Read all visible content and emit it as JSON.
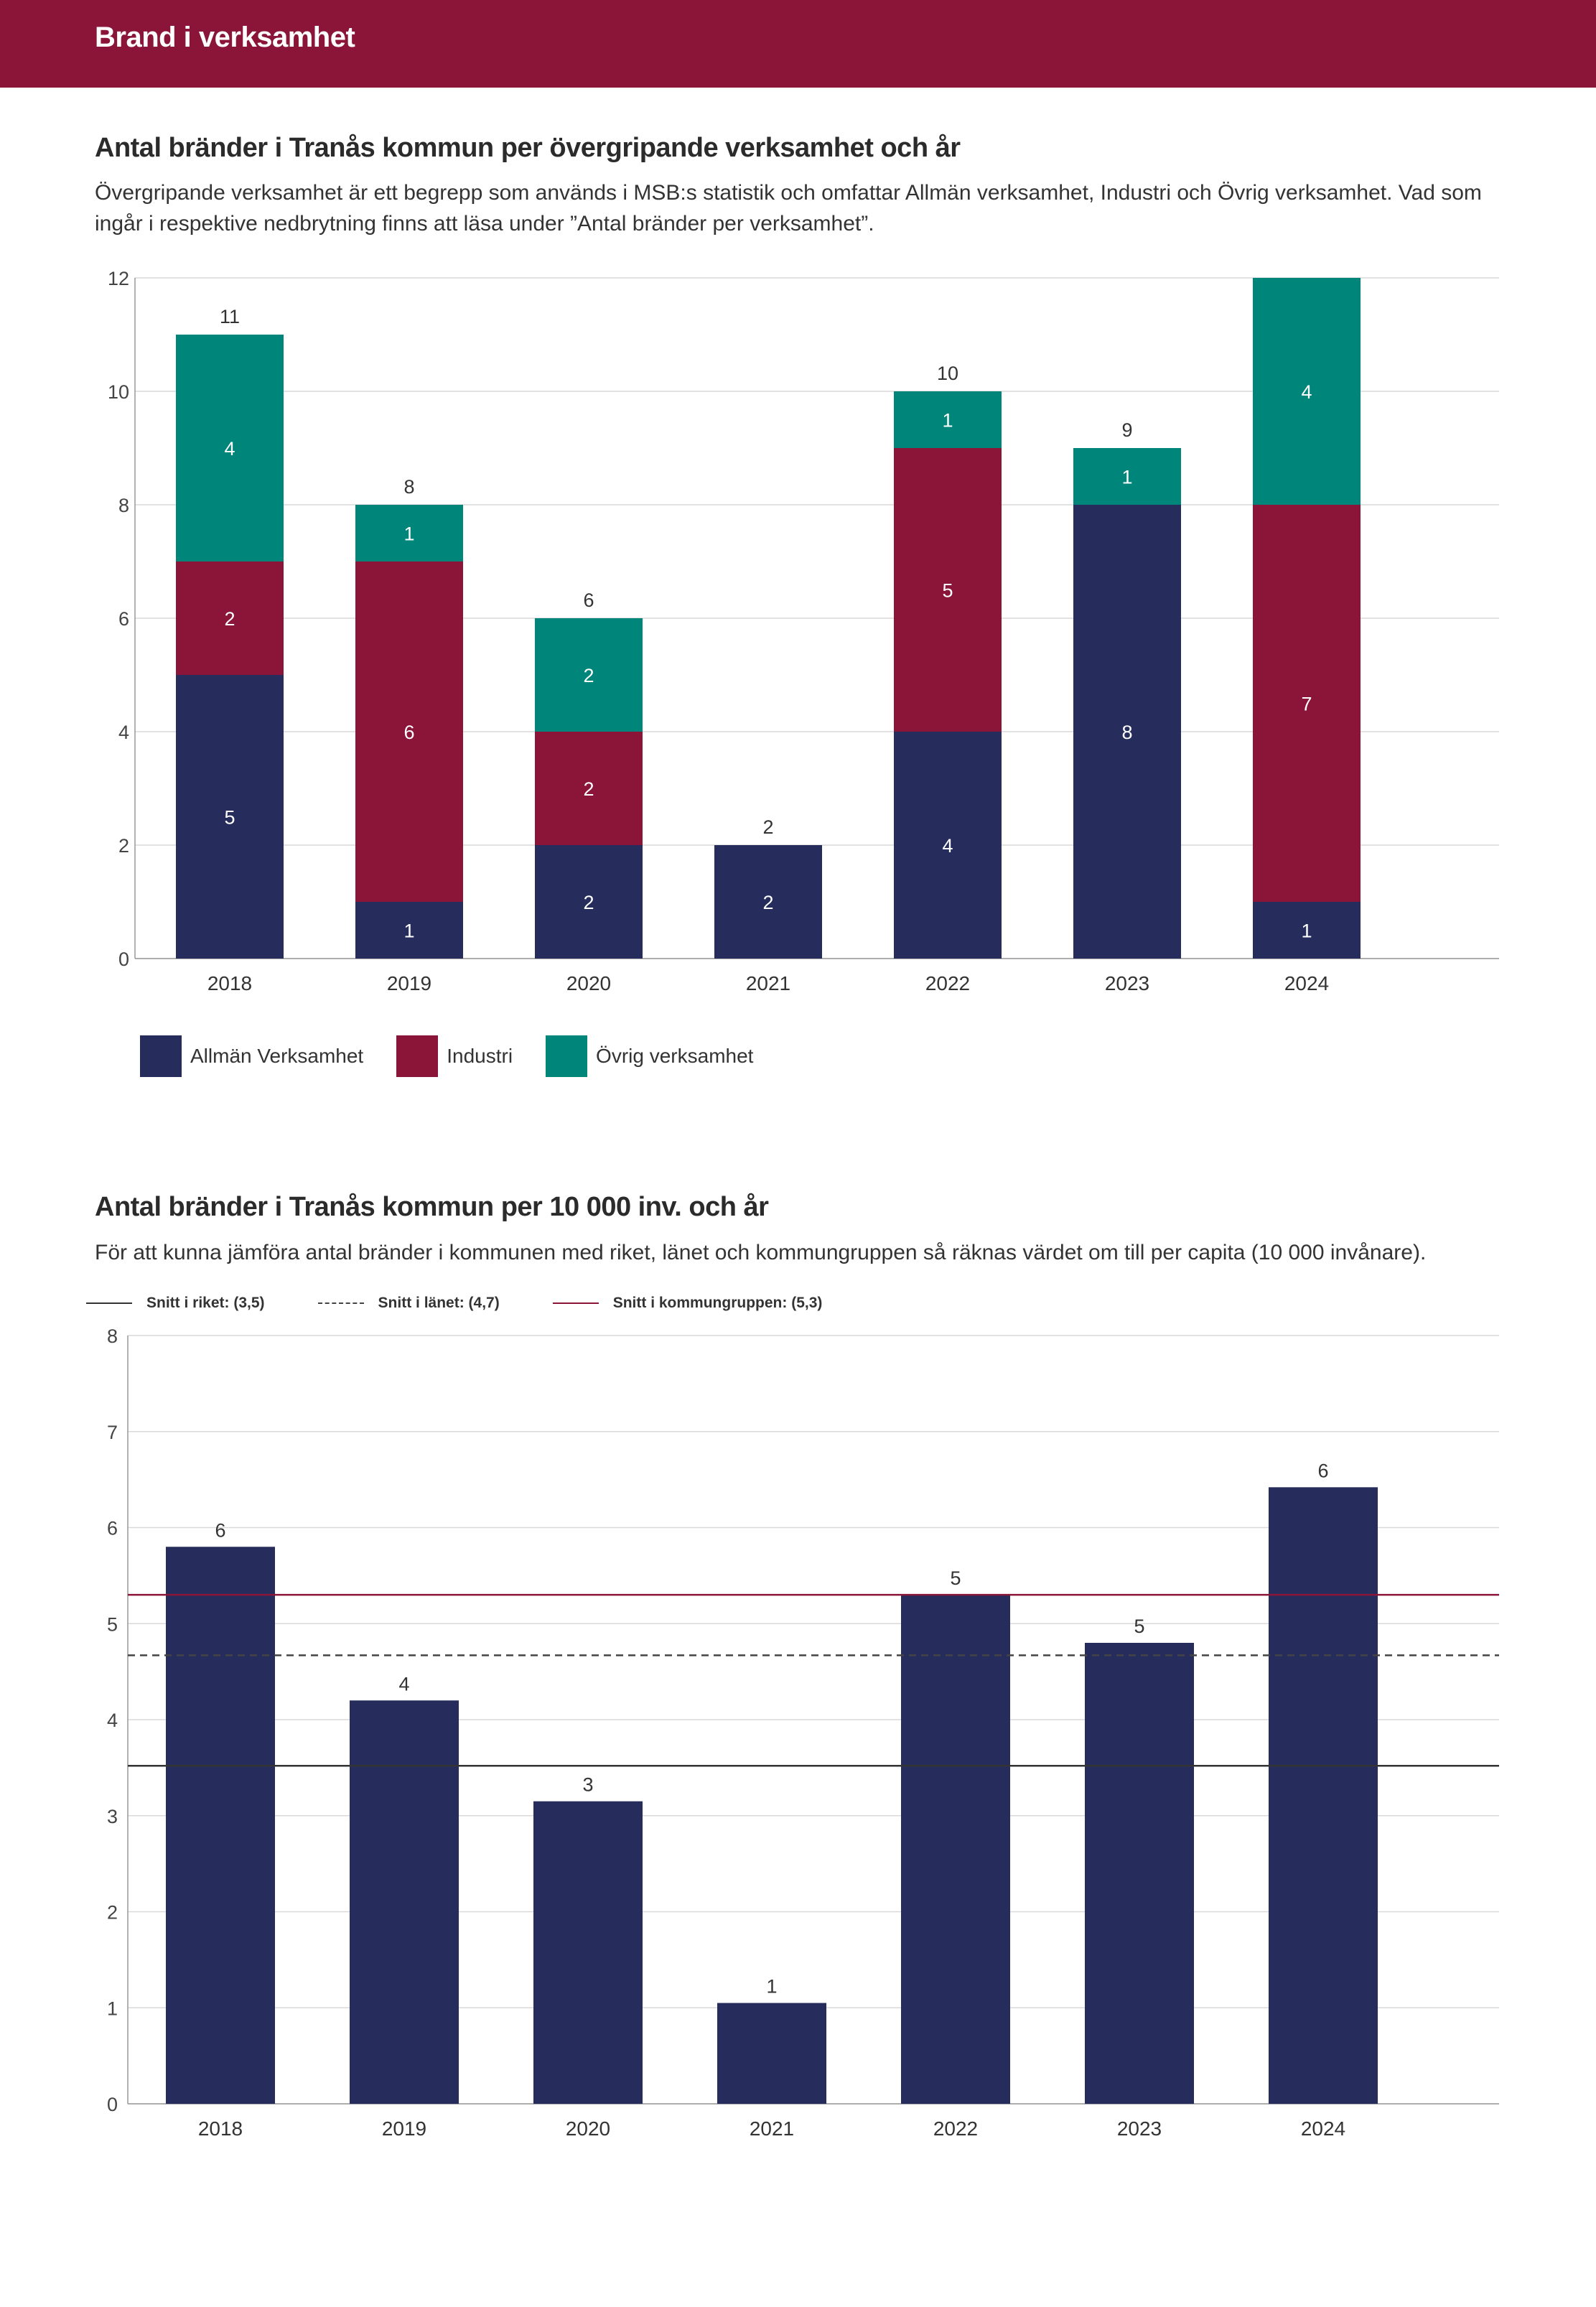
{
  "header": {
    "title": "Brand i verksamhet"
  },
  "section1": {
    "title": "Antal bränder i Tranås kommun per övergripande verksamhet och år",
    "description": "Övergripande verksamhet är ett begrepp som används i MSB:s statistik och omfattar Allmän verksamhet, Industri och Övrig verksamhet. Vad som ingår i respektive nedbrytning finns att läsa under ”Antal bränder per verksamhet”."
  },
  "section2": {
    "title": "Antal bränder i Tranås kommun per 10 000 inv. och år",
    "description": "För att kunna jämföra antal bränder i kommunen med riket, länet och kommungruppen så räknas värdet om till per capita (10 000 invånare)."
  },
  "colors": {
    "allman": "#262d5c",
    "industri": "#8a1538",
    "ovrig": "#00857a",
    "grid": "#d9d9d9",
    "axis": "#999999",
    "riket": "#333333",
    "lanet": "#444444",
    "kommungrupp": "#8a1538"
  },
  "chart_data": [
    {
      "type": "bar",
      "stacked": true,
      "title": "Antal bränder i Tranås kommun per övergripande verksamhet och år",
      "categories": [
        "2018",
        "2019",
        "2020",
        "2021",
        "2022",
        "2023",
        "2024"
      ],
      "series": [
        {
          "name": "Allmän Verksamhet",
          "key": "allman",
          "values": [
            5,
            1,
            2,
            2,
            4,
            8,
            1
          ]
        },
        {
          "name": "Industri",
          "key": "industri",
          "values": [
            2,
            6,
            2,
            0,
            5,
            0,
            7
          ]
        },
        {
          "name": "Övrig verksamhet",
          "key": "ovrig",
          "values": [
            4,
            1,
            2,
            0,
            1,
            1,
            4
          ]
        }
      ],
      "totals": [
        11,
        8,
        6,
        2,
        10,
        9,
        12
      ],
      "total_labels": [
        "11",
        "8",
        "6",
        "2",
        "10",
        "9",
        ""
      ],
      "yticks": [
        0,
        2,
        4,
        6,
        8,
        10,
        12
      ],
      "ylim": [
        0,
        12
      ],
      "grid": true,
      "legend": "bottom-left"
    },
    {
      "type": "bar",
      "title": "Antal bränder i Tranås kommun per 10 000 inv. och år",
      "categories": [
        "2018",
        "2019",
        "2020",
        "2021",
        "2022",
        "2023",
        "2024"
      ],
      "values": [
        5.8,
        4.2,
        3.15,
        1.05,
        5.3,
        4.8,
        6.42
      ],
      "value_labels": [
        "6",
        "4",
        "3",
        "1",
        "5",
        "5",
        "6"
      ],
      "yticks": [
        0,
        1,
        2,
        3,
        4,
        5,
        6,
        7,
        8
      ],
      "ylim": [
        0,
        8
      ],
      "grid": true,
      "reference_lines": [
        {
          "label": "Snitt i riket: (3,5)",
          "value": 3.52,
          "style": "solid",
          "key": "riket"
        },
        {
          "label": "Snitt i länet: (4,7)",
          "value": 4.67,
          "style": "dashed",
          "key": "lanet"
        },
        {
          "label": "Snitt i kommungruppen: (5,3)",
          "value": 5.3,
          "style": "solid",
          "key": "kommungrupp"
        }
      ],
      "legend": "top-left"
    }
  ]
}
